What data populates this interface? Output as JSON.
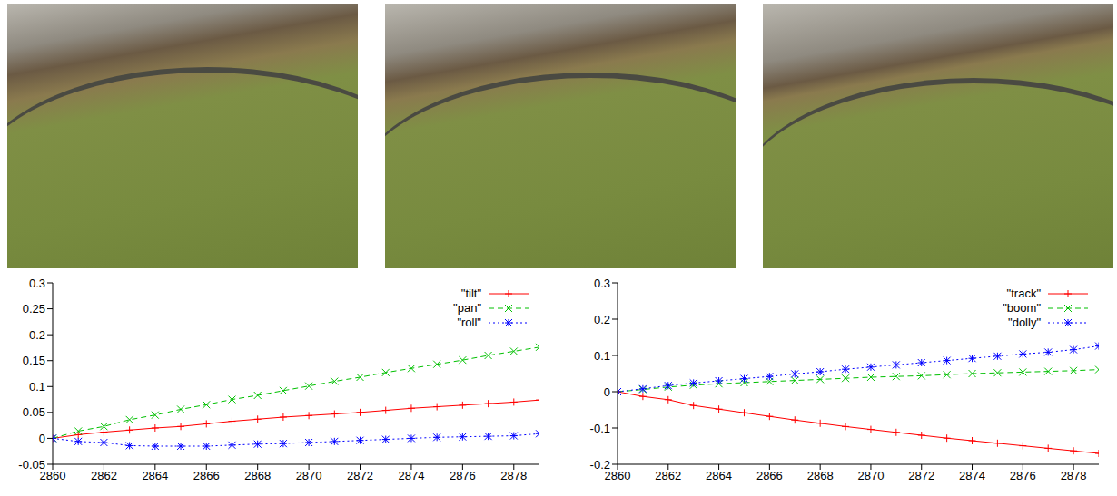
{
  "chart_data": [
    {
      "type": "line",
      "x": [
        2860,
        2861,
        2862,
        2863,
        2864,
        2865,
        2866,
        2867,
        2868,
        2869,
        2870,
        2871,
        2872,
        2873,
        2874,
        2875,
        2876,
        2877,
        2878,
        2879
      ],
      "xlim": [
        2860,
        2879
      ],
      "xticks": [
        2860,
        2862,
        2864,
        2866,
        2868,
        2870,
        2872,
        2874,
        2876,
        2878
      ],
      "ylim": [
        -0.05,
        0.3
      ],
      "yticks": [
        -0.05,
        0,
        0.05,
        0.1,
        0.15,
        0.2,
        0.25,
        0.3
      ],
      "legend": "upper right",
      "series": [
        {
          "name": "\"tilt\"",
          "color": "#ff0000",
          "marker": "plus",
          "line_style": "solid",
          "values": [
            0,
            0.007,
            0.012,
            0.016,
            0.02,
            0.023,
            0.028,
            0.033,
            0.037,
            0.041,
            0.044,
            0.047,
            0.05,
            0.054,
            0.058,
            0.061,
            0.064,
            0.067,
            0.07,
            0.074
          ]
        },
        {
          "name": "\"pan\"",
          "color": "#00c000",
          "marker": "cross",
          "line_style": "dashed",
          "values": [
            0,
            0.014,
            0.023,
            0.036,
            0.045,
            0.056,
            0.065,
            0.075,
            0.083,
            0.092,
            0.101,
            0.11,
            0.118,
            0.127,
            0.135,
            0.143,
            0.151,
            0.16,
            0.168,
            0.176
          ]
        },
        {
          "name": "\"roll\"",
          "color": "#0000ff",
          "marker": "star",
          "line_style": "dotted",
          "values": [
            0,
            -0.006,
            -0.008,
            -0.014,
            -0.015,
            -0.015,
            -0.015,
            -0.013,
            -0.011,
            -0.01,
            -0.008,
            -0.006,
            -0.004,
            -0.002,
            0,
            0.002,
            0.003,
            0.004,
            0.005,
            0.009
          ]
        }
      ]
    },
    {
      "type": "line",
      "x": [
        2860,
        2861,
        2862,
        2863,
        2864,
        2865,
        2866,
        2867,
        2868,
        2869,
        2870,
        2871,
        2872,
        2873,
        2874,
        2875,
        2876,
        2877,
        2878,
        2879
      ],
      "xlim": [
        2860,
        2879
      ],
      "xticks": [
        2860,
        2862,
        2864,
        2866,
        2868,
        2870,
        2872,
        2874,
        2876,
        2878
      ],
      "ylim": [
        -0.2,
        0.3
      ],
      "yticks": [
        -0.2,
        -0.1,
        0,
        0.1,
        0.2,
        0.3
      ],
      "legend": "upper right",
      "series": [
        {
          "name": "\"track\"",
          "color": "#ff0000",
          "marker": "plus",
          "line_style": "solid",
          "values": [
            0,
            -0.013,
            -0.022,
            -0.038,
            -0.048,
            -0.058,
            -0.068,
            -0.078,
            -0.087,
            -0.096,
            -0.104,
            -0.112,
            -0.12,
            -0.128,
            -0.135,
            -0.142,
            -0.149,
            -0.156,
            -0.163,
            -0.17
          ]
        },
        {
          "name": "\"boom\"",
          "color": "#00c000",
          "marker": "cross",
          "line_style": "dashed",
          "values": [
            0,
            0.006,
            0.013,
            0.018,
            0.022,
            0.025,
            0.028,
            0.031,
            0.034,
            0.037,
            0.04,
            0.042,
            0.044,
            0.047,
            0.05,
            0.052,
            0.054,
            0.056,
            0.058,
            0.061
          ]
        },
        {
          "name": "\"dolly\"",
          "color": "#0000ff",
          "marker": "star",
          "line_style": "dotted",
          "values": [
            0,
            0.008,
            0.017,
            0.024,
            0.03,
            0.036,
            0.042,
            0.049,
            0.055,
            0.062,
            0.068,
            0.074,
            0.08,
            0.086,
            0.092,
            0.098,
            0.104,
            0.109,
            0.116,
            0.126
          ]
        }
      ]
    }
  ]
}
